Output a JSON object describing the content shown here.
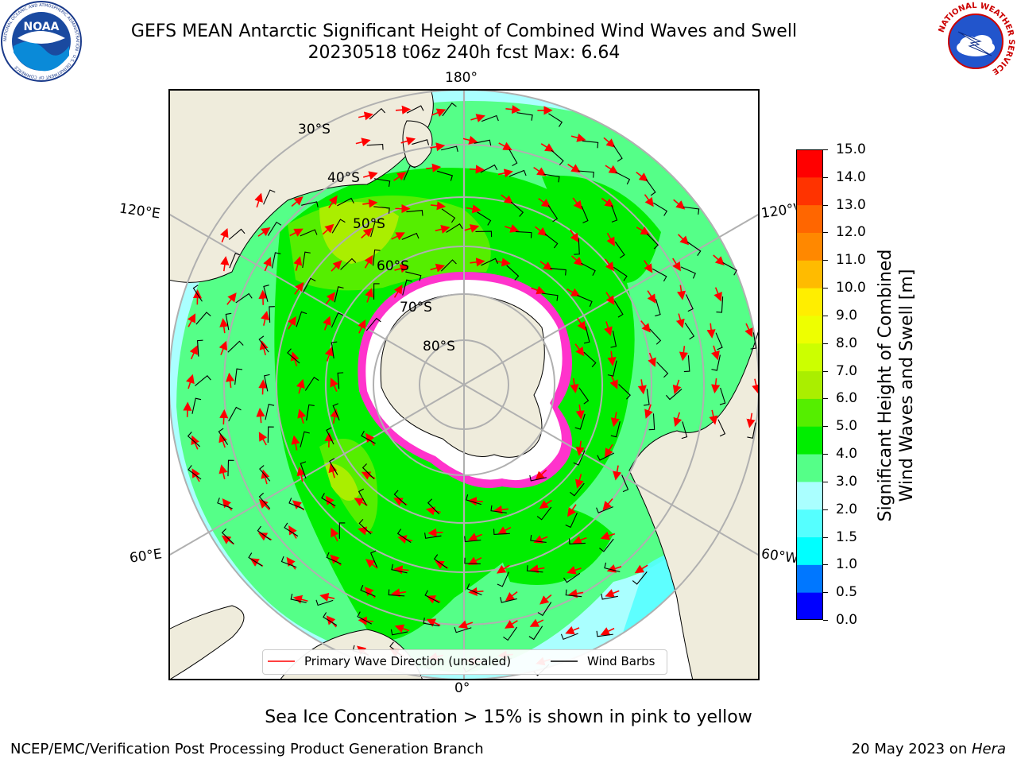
{
  "header": {
    "title_line1": "GEFS MEAN Antarctic Significant Height of Combined Wind Waves and Swell",
    "title_line2": "20230518 t06z 240h fcst   Max: 6.64"
  },
  "map": {
    "projection": "south-polar-stereographic",
    "longitude_labels": {
      "top": "180°",
      "bottom": "0°",
      "upper_left": "120°E",
      "lower_left": "60°E",
      "upper_right": "120°W",
      "lower_right": "60°W"
    },
    "latitude_labels": [
      "30°S",
      "40°S",
      "50°S",
      "60°S",
      "70°S",
      "80°S"
    ],
    "legend": {
      "wave_direction_label": "Primary Wave Direction (unscaled)",
      "wind_barbs_label": "Wind Barbs",
      "wave_color": "#ff0000",
      "barb_color": "#000000"
    },
    "land_color": "#efecdc",
    "ice_color": "#ff33cc"
  },
  "colorbar": {
    "title_line1": "Significant Height of Combined",
    "title_line2": "Wind Waves and Swell [m]",
    "ticks": [
      "0.0",
      "0.5",
      "1.0",
      "1.5",
      "2.0",
      "3.0",
      "4.0",
      "5.0",
      "6.0",
      "7.0",
      "8.0",
      "9.0",
      "10.0",
      "11.0",
      "12.0",
      "13.0",
      "14.0",
      "15.0"
    ],
    "colors": [
      "#0000ff",
      "#0077ff",
      "#00ffff",
      "#55ffff",
      "#aaffff",
      "#55ff88",
      "#00ee00",
      "#55ee00",
      "#aaee00",
      "#ccff00",
      "#eeff00",
      "#ffee00",
      "#ffbb00",
      "#ff8800",
      "#ff6600",
      "#ff3300",
      "#ff0000"
    ]
  },
  "caption": "Sea Ice Concentration > 15% is shown in pink to yellow",
  "footer": {
    "left": "NCEP/EMC/Verification Post Processing Product Generation Branch",
    "right_prefix": "20 May 2023 on ",
    "right_host": "Hera"
  },
  "logos": {
    "noaa_text": "NOAA",
    "noaa_ring": "NATIONAL OCEANIC AND ATMOSPHERIC ADMINISTRATION · U.S. DEPARTMENT OF COMMERCE",
    "nws_ring": "NATIONAL WEATHER SERVICE"
  }
}
